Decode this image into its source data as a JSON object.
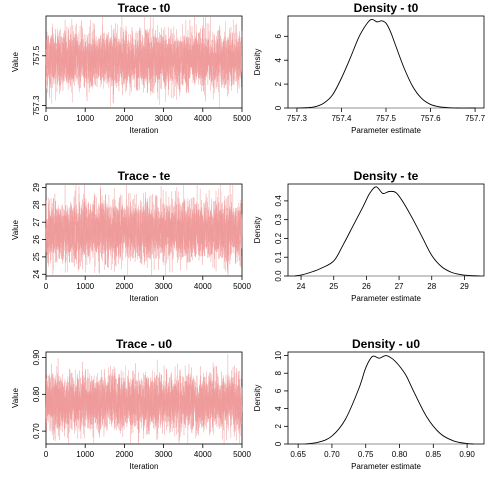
{
  "chart_data": [
    {
      "type": "line",
      "title": "Trace - t0",
      "xlabel": "Iteration",
      "ylabel": "Value",
      "xlim": [
        0,
        5000
      ],
      "ylim": [
        757.29,
        757.66
      ],
      "xticks": [
        "0",
        "1000",
        "2000",
        "3000",
        "4000",
        "5000"
      ],
      "xtick_values": [
        0,
        1000,
        2000,
        3000,
        4000,
        5000
      ],
      "yticks": [
        "757.3",
        "757.5"
      ],
      "ytick_values": [
        757.3,
        757.5
      ],
      "trace": {
        "n": 5000,
        "center": 757.485,
        "sd": 0.055
      },
      "color": "#ef9a9a"
    },
    {
      "type": "line",
      "title": "Density - t0",
      "xlabel": "Parameter estimate",
      "ylabel": "Density",
      "xlim": [
        757.28,
        757.72
      ],
      "ylim": [
        0,
        7.7
      ],
      "xticks": [
        "757.3",
        "757.4",
        "757.5",
        "757.6",
        "757.7"
      ],
      "xtick_values": [
        757.3,
        757.4,
        757.5,
        757.6,
        757.7
      ],
      "yticks": [
        "0",
        "2",
        "4",
        "6"
      ],
      "ytick_values": [
        0,
        2,
        4,
        6
      ],
      "x": [
        757.3,
        757.32,
        757.34,
        757.36,
        757.38,
        757.4,
        757.42,
        757.44,
        757.46,
        757.47,
        757.48,
        757.49,
        757.5,
        757.51,
        757.52,
        757.54,
        757.56,
        757.58,
        757.6,
        757.62,
        757.64,
        757.66,
        757.7
      ],
      "y": [
        0,
        0.02,
        0.1,
        0.4,
        1.1,
        2.5,
        4.2,
        6.0,
        7.2,
        7.4,
        7.2,
        7.3,
        7.1,
        6.4,
        5.4,
        3.4,
        1.8,
        0.8,
        0.3,
        0.1,
        0.03,
        0,
        0
      ],
      "color": "#000000"
    },
    {
      "type": "line",
      "title": "Trace - te",
      "xlabel": "Iteration",
      "ylabel": "Value",
      "xlim": [
        0,
        5000
      ],
      "ylim": [
        23.9,
        29.2
      ],
      "xticks": [
        "0",
        "1000",
        "2000",
        "3000",
        "4000",
        "5000"
      ],
      "xtick_values": [
        0,
        1000,
        2000,
        3000,
        4000,
        5000
      ],
      "yticks": [
        "24",
        "25",
        "26",
        "27",
        "28",
        "29"
      ],
      "ytick_values": [
        24,
        25,
        26,
        27,
        28,
        29
      ],
      "trace": {
        "n": 5000,
        "center": 26.5,
        "sd": 0.85
      },
      "color": "#ef9a9a"
    },
    {
      "type": "line",
      "title": "Density - te",
      "xlabel": "Parameter estimate",
      "ylabel": "Density",
      "xlim": [
        23.6,
        29.6
      ],
      "ylim": [
        0,
        0.49
      ],
      "xticks": [
        "24",
        "25",
        "26",
        "27",
        "28",
        "29"
      ],
      "xtick_values": [
        24,
        25,
        26,
        27,
        28,
        29
      ],
      "yticks": [
        "0.0",
        "0.1",
        "0.2",
        "0.3",
        "0.4"
      ],
      "ytick_values": [
        0,
        0.1,
        0.2,
        0.3,
        0.4
      ],
      "x": [
        23.8,
        24.0,
        24.3,
        24.6,
        25.0,
        25.3,
        25.6,
        25.9,
        26.1,
        26.3,
        26.5,
        26.7,
        26.9,
        27.1,
        27.4,
        27.7,
        28.0,
        28.3,
        28.6,
        28.9,
        29.2,
        29.5
      ],
      "y": [
        0,
        0.005,
        0.02,
        0.04,
        0.08,
        0.17,
        0.27,
        0.37,
        0.44,
        0.475,
        0.44,
        0.45,
        0.445,
        0.4,
        0.31,
        0.21,
        0.11,
        0.05,
        0.02,
        0.007,
        0.002,
        0
      ],
      "color": "#000000"
    },
    {
      "type": "line",
      "title": "Trace - u0",
      "xlabel": "Iteration",
      "ylabel": "Value",
      "xlim": [
        0,
        5000
      ],
      "ylim": [
        0.665,
        0.915
      ],
      "xticks": [
        "0",
        "1000",
        "2000",
        "3000",
        "4000",
        "5000"
      ],
      "xtick_values": [
        0,
        1000,
        2000,
        3000,
        4000,
        5000
      ],
      "yticks": [
        "0.70",
        "0.80",
        "0.90"
      ],
      "ytick_values": [
        0.7,
        0.8,
        0.9
      ],
      "trace": {
        "n": 5000,
        "center": 0.778,
        "sd": 0.037
      },
      "color": "#ef9a9a"
    },
    {
      "type": "line",
      "title": "Density - u0",
      "xlabel": "Parameter estimate",
      "ylabel": "Density",
      "xlim": [
        0.635,
        0.925
      ],
      "ylim": [
        0,
        10.4
      ],
      "xticks": [
        "0.65",
        "0.70",
        "0.75",
        "0.80",
        "0.85",
        "0.90"
      ],
      "xtick_values": [
        0.65,
        0.7,
        0.75,
        0.8,
        0.85,
        0.9
      ],
      "yticks": [
        "0",
        "2",
        "4",
        "6",
        "8",
        "10"
      ],
      "ytick_values": [
        0,
        2,
        4,
        6,
        8,
        10
      ],
      "x": [
        0.66,
        0.68,
        0.7,
        0.72,
        0.74,
        0.75,
        0.76,
        0.77,
        0.78,
        0.79,
        0.8,
        0.81,
        0.82,
        0.84,
        0.86,
        0.88,
        0.9,
        0.91
      ],
      "y": [
        0,
        0.2,
        0.9,
        2.8,
        6.3,
        8.6,
        9.9,
        9.7,
        10.0,
        9.6,
        8.8,
        7.7,
        6.1,
        3.1,
        1.2,
        0.35,
        0.05,
        0
      ],
      "color": "#000000"
    }
  ]
}
